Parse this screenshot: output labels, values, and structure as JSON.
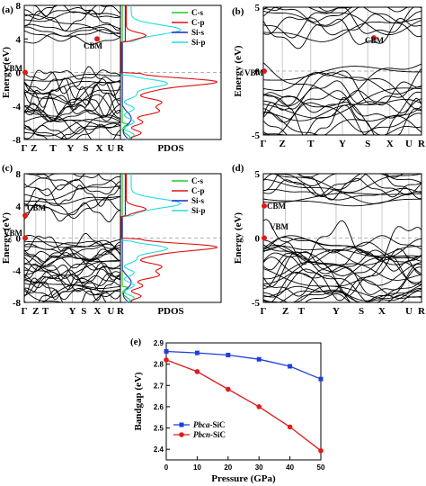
{
  "chart_data": [
    {
      "type": "line",
      "panel_label": "(a)",
      "ylabel": "Energy (eV)",
      "ylim": [
        -8,
        8
      ],
      "y_ticks": [
        -8,
        -4,
        0,
        4,
        8
      ],
      "k_path": [
        "Γ",
        "Z",
        "T",
        "Y",
        "S",
        "X",
        "U",
        "R"
      ],
      "pdos_label": "PDOS",
      "annotations": [
        "VBM",
        "CBM"
      ],
      "legend": [
        "C-s",
        "C-p",
        "Si-s",
        "Si-p"
      ],
      "colors": {
        "C-s": "#22cc22",
        "C-p": "#dd1111",
        "Si-s": "#2222cc",
        "Si-p": "#22dddd"
      }
    },
    {
      "type": "line",
      "panel_label": "(b)",
      "ylabel": "Energy (eV)",
      "ylim": [
        -5,
        5
      ],
      "y_ticks": [
        -5,
        0,
        5
      ],
      "k_path": [
        "Γ",
        "Z",
        "T",
        "Y",
        "S",
        "X",
        "U",
        "R"
      ],
      "annotations": [
        "VBM",
        "CBM"
      ]
    },
    {
      "type": "line",
      "panel_label": "(c)",
      "ylabel": "Energy (eV)",
      "ylim": [
        -8,
        8
      ],
      "y_ticks": [
        -8,
        -4,
        0,
        4,
        8
      ],
      "k_path": [
        "Γ",
        "Z",
        "T",
        "Y",
        "S",
        "X",
        "U",
        "R"
      ],
      "pdos_label": "PDOS",
      "annotations": [
        "VBM",
        "CBM"
      ],
      "legend": [
        "C-s",
        "C-p",
        "Si-s",
        "Si-p"
      ],
      "colors": {
        "C-s": "#22cc22",
        "C-p": "#dd1111",
        "Si-s": "#2222cc",
        "Si-p": "#22dddd"
      }
    },
    {
      "type": "line",
      "panel_label": "(d)",
      "ylabel": "Energy (eV)",
      "ylim": [
        -5,
        5
      ],
      "y_ticks": [
        -5,
        0,
        5
      ],
      "k_path": [
        "Γ",
        "Z",
        "T",
        "Y",
        "S",
        "X",
        "U",
        "R"
      ],
      "annotations": [
        "VBM",
        "CBM"
      ]
    },
    {
      "type": "line",
      "panel_label": "(e)",
      "xlabel": "Pressure (GPa)",
      "ylabel": "Bandgap (eV)",
      "xlim": [
        0,
        50
      ],
      "ylim": [
        2.35,
        2.9
      ],
      "x_ticks": [
        0,
        10,
        20,
        30,
        40,
        50
      ],
      "y_ticks": [
        2.4,
        2.5,
        2.6,
        2.7,
        2.8,
        2.9
      ],
      "x": [
        0,
        10,
        20,
        30,
        40,
        50
      ],
      "series": [
        {
          "name_italic": "Pbca",
          "name_suffix": "-SiC",
          "color": "#1f3fdd",
          "marker": "square",
          "values": [
            2.86,
            2.853,
            2.843,
            2.823,
            2.79,
            2.73
          ]
        },
        {
          "name_italic": "Pbcn",
          "name_suffix": "-SiC",
          "color": "#e01b1b",
          "marker": "circle",
          "values": [
            2.82,
            2.765,
            2.682,
            2.6,
            2.505,
            2.393
          ]
        }
      ],
      "legend_position": "bottom-left"
    }
  ]
}
